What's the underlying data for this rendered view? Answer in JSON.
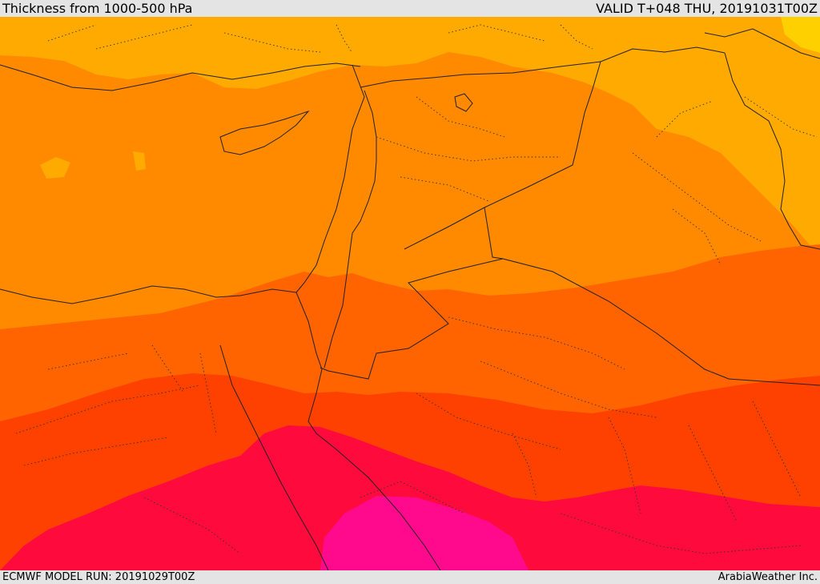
{
  "header": {
    "title": "Thickness from 1000-500 hPa",
    "valid": "VALID T+048 THU, 20191031T00Z"
  },
  "footer": {
    "model_run": "ECMWF MODEL RUN: 20191029T00Z",
    "credit": "ArabiaWeather Inc."
  },
  "colors": {
    "band_1": "#ffaa00",
    "band_2": "#ff8a00",
    "band_3": "#ff6400",
    "band_4": "#ff4100",
    "band_5": "#ff0a3c",
    "band_6": "#ff0a8c",
    "bright_spot": "#ffd000"
  }
}
